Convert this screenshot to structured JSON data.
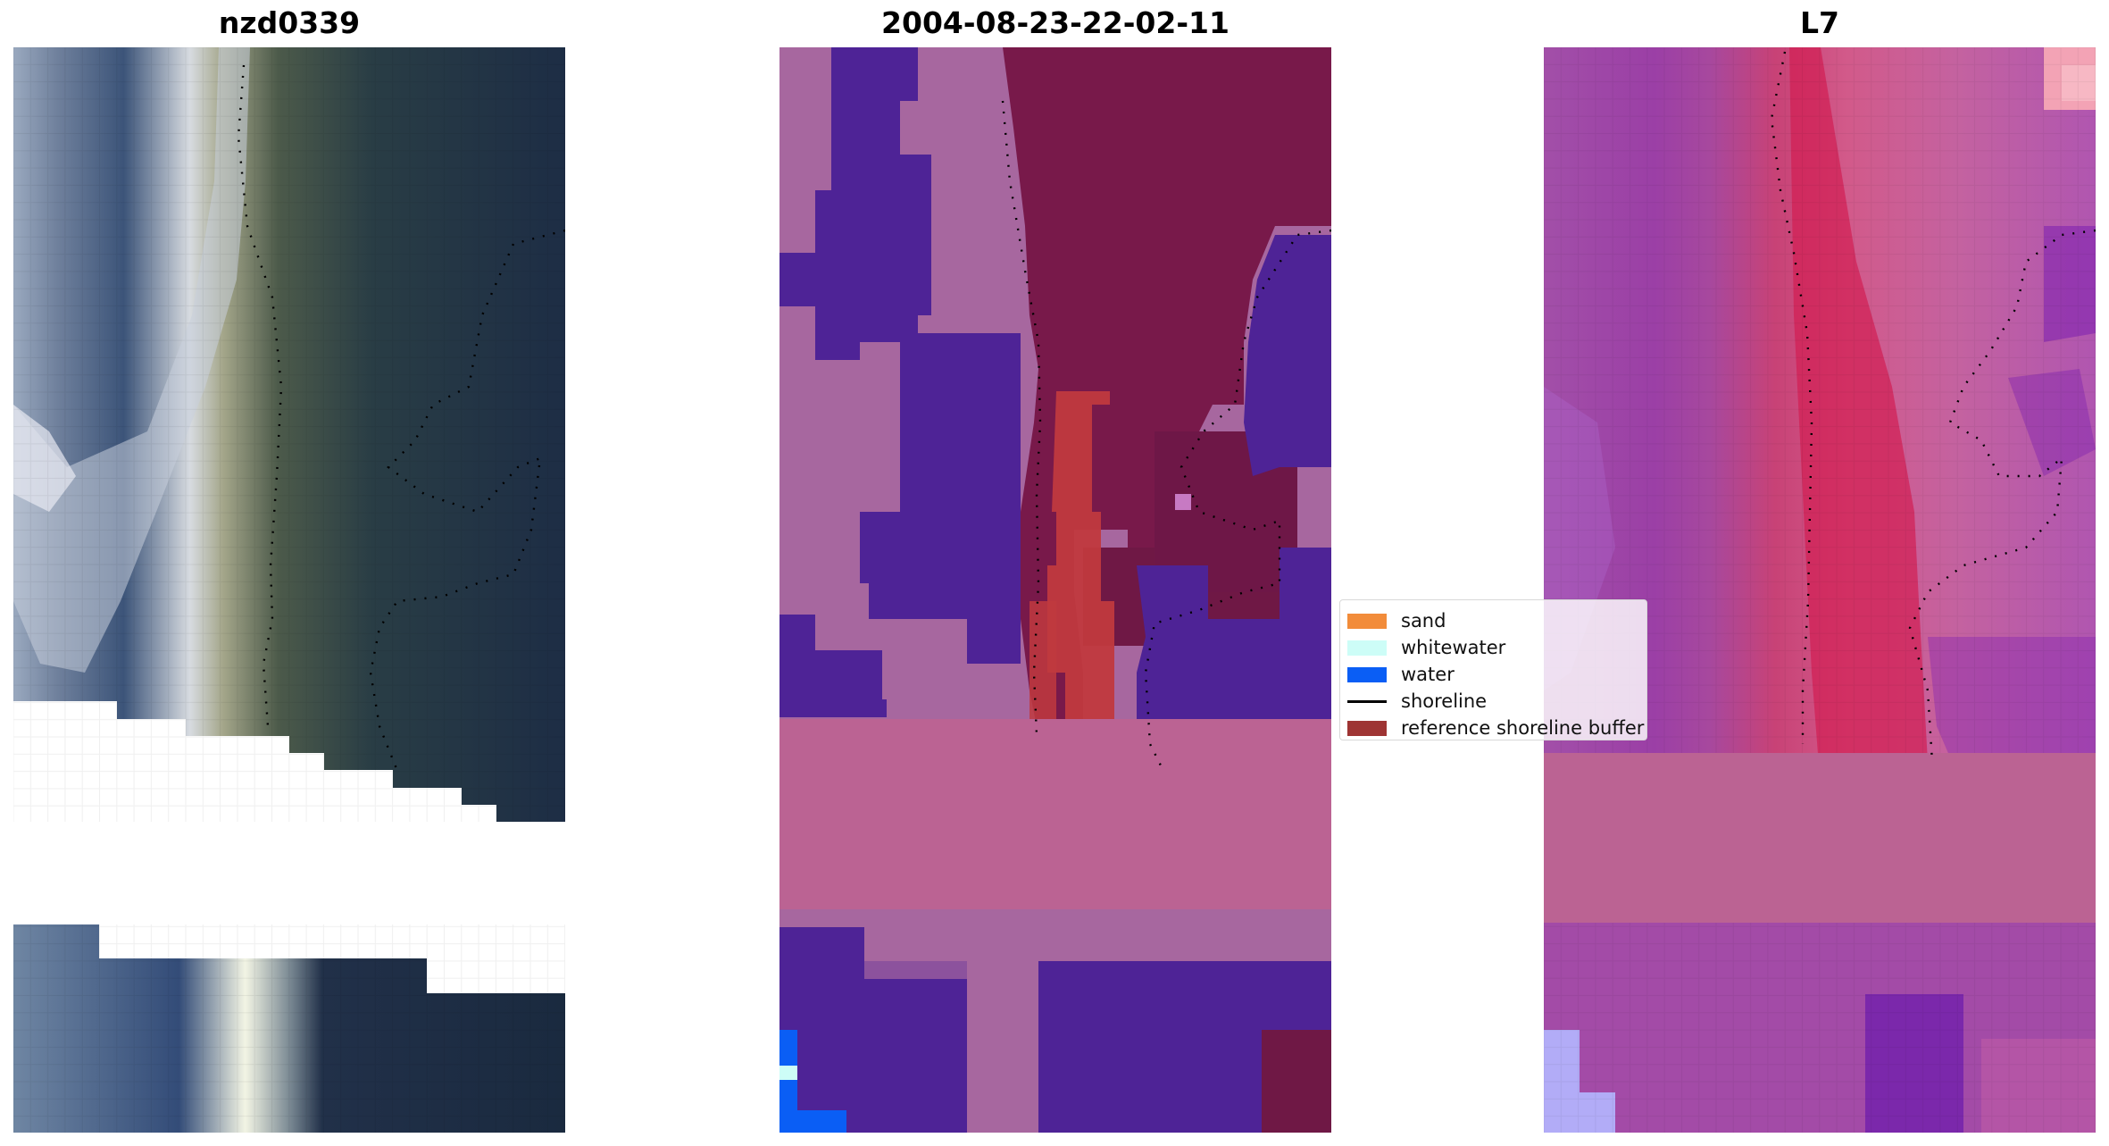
{
  "panels": [
    {
      "title": "nzd0339"
    },
    {
      "title": "2004-08-23-22-02-11"
    },
    {
      "title": "L7"
    }
  ],
  "legend": {
    "items": [
      {
        "label": "sand",
        "color": "#f28c3a"
      },
      {
        "label": "whitewater",
        "color": "#cdfdf7"
      },
      {
        "label": "water",
        "color": "#0a5ef5"
      },
      {
        "label": "shoreline",
        "color": "#000000"
      },
      {
        "label": "reference shoreline buffer",
        "color": "#9e3433"
      }
    ]
  },
  "colors": {
    "rgb_white": "#f5f4f4",
    "rgb_forest": "#26394c",
    "rgb_sea": "#5e7186",
    "class_other": "#b85a9a",
    "class_water_overlay": "#4d2398",
    "class_sand_overlay": "#78194a",
    "class_buffer": "#c0393e",
    "ndwi_pink": "#c0609a",
    "ndwi_purple": "#8d2ea8",
    "ndwi_red": "#d21e52"
  }
}
